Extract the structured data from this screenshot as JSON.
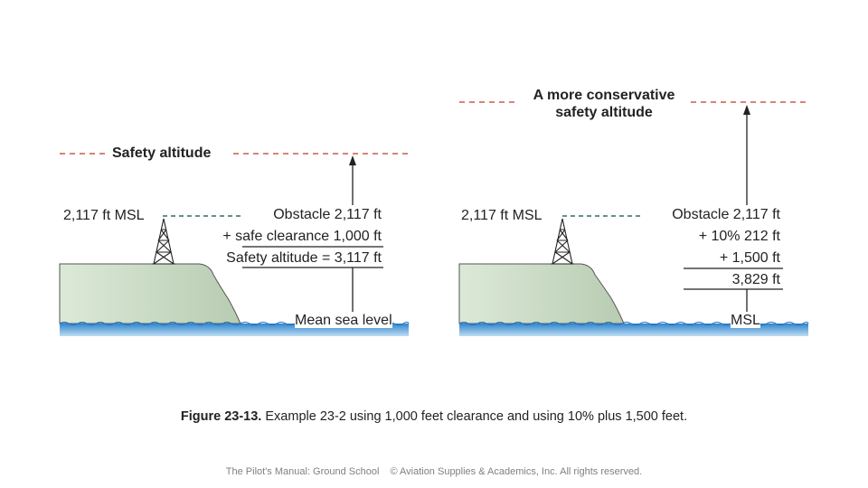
{
  "left_panel": {
    "safety_label": "Safety altitude",
    "msl_label": "2,117 ft MSL",
    "calc_lines": [
      "Obstacle 2,117 ft",
      "+ safe clearance 1,000 ft",
      "Safety altitude = 3,117 ft"
    ],
    "sea_label": "Mean sea level"
  },
  "right_panel": {
    "safety_label_line1": "A more conservative",
    "safety_label_line2": "safety altitude",
    "msl_label": "2,117 ft MSL",
    "calc_lines": [
      "Obstacle 2,117 ft",
      "+ 10% 212 ft",
      "+ 1,500 ft",
      "3,829 ft"
    ],
    "sea_label": "MSL"
  },
  "caption": {
    "figure_number": "Figure 23-13.",
    "text": "Example 23-2 using 1,000 feet clearance and using 10% plus 1,500 feet."
  },
  "footer": {
    "left": "The Pilot's Manual: Ground School",
    "right": "© Aviation Supplies & Academics, Inc. All rights reserved."
  },
  "colors": {
    "safety_line": "#c0392b",
    "obstacle_line": "#2e6e6a",
    "water": "#3a8fd0",
    "land": "#cfe0c8"
  }
}
